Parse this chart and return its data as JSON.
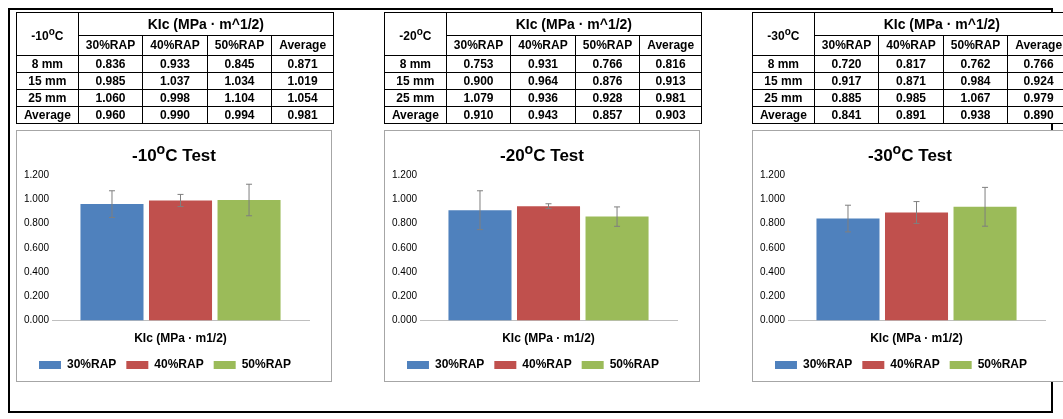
{
  "chart_data": [
    {
      "type": "heatmap",
      "data_labels": true,
      "title": "KIc (MPa · m^1/2)",
      "ylabel": "-10$^{o}$C",
      "categories": [
        "30%RAP",
        "40%RAP",
        "50%RAP",
        "Average"
      ],
      "y_categories": [
        "8 mm",
        "15 mm",
        "25 mm",
        "Average"
      ],
      "cells": [
        [
          0.836,
          0.933,
          0.845,
          0.871
        ],
        [
          0.985,
          1.037,
          1.034,
          1.019
        ],
        [
          1.06,
          0.998,
          1.104,
          1.054
        ],
        [
          0.96,
          0.99,
          0.994,
          0.981
        ]
      ],
      "cell_labels": [
        [
          "0.836",
          "0.933",
          "0.845",
          "0.871"
        ],
        [
          "0.985",
          "1.037",
          "1.034",
          "1.019"
        ],
        [
          "1.060",
          "0.998",
          "1.104",
          "1.054"
        ],
        [
          "0.960",
          "0.990",
          "0.994",
          "0.981"
        ]
      ]
    },
    {
      "type": "heatmap",
      "data_labels": true,
      "title": "KIc (MPa · m^1/2)",
      "ylabel": "-20$^{o}$C",
      "categories": [
        "30%RAP",
        "40%RAP",
        "50%RAP",
        "Average"
      ],
      "y_categories": [
        "8 mm",
        "15 mm",
        "25 mm",
        "Average"
      ],
      "cells": [
        [
          0.753,
          0.931,
          0.766,
          0.816
        ],
        [
          0.9,
          0.964,
          0.876,
          0.913
        ],
        [
          1.079,
          0.936,
          0.928,
          0.981
        ],
        [
          0.91,
          0.943,
          0.857,
          0.903
        ]
      ],
      "cell_labels": [
        [
          "0.753",
          "0.931",
          "0.766",
          "0.816"
        ],
        [
          "0.900",
          "0.964",
          "0.876",
          "0.913"
        ],
        [
          "1.079",
          "0.936",
          "0.928",
          "0.981"
        ],
        [
          "0.910",
          "0.943",
          "0.857",
          "0.903"
        ]
      ]
    },
    {
      "type": "heatmap",
      "data_labels": true,
      "title": "KIc (MPa · m^1/2)",
      "ylabel": "-30$^{o}$C",
      "categories": [
        "30%RAP",
        "40%RAP",
        "50%RAP",
        "Average"
      ],
      "y_categories": [
        "8 mm",
        "15 mm",
        "25 mm",
        "Average"
      ],
      "cells": [
        [
          0.72,
          0.817,
          0.762,
          0.766
        ],
        [
          0.917,
          0.871,
          0.984,
          0.924
        ],
        [
          0.885,
          0.985,
          1.067,
          0.979
        ],
        [
          0.841,
          0.891,
          0.938,
          0.89
        ]
      ],
      "cell_labels": [
        [
          "0.720",
          "0.817",
          "0.762",
          "0.766"
        ],
        [
          "0.917",
          "0.871",
          "0.984",
          "0.924"
        ],
        [
          "0.885",
          "0.985",
          "1.067",
          "0.979"
        ],
        [
          "0.841",
          "0.891",
          "0.938",
          "0.890"
        ]
      ]
    },
    {
      "type": "bar",
      "title": "-10$^{o}$C Test",
      "categories": [
        "KIc (MPa · m1/2)"
      ],
      "ylim": [
        0,
        1.2
      ],
      "legend": "bottom",
      "yticks": [
        {
          "value": 0,
          "label": "0.000"
        },
        {
          "value": 0.2,
          "label": "0.200"
        },
        {
          "value": 0.4,
          "label": "0.400"
        },
        {
          "value": 0.6,
          "label": "0.600"
        },
        {
          "value": 0.8,
          "label": "0.800"
        },
        {
          "value": 1,
          "label": "1.000"
        },
        {
          "value": 1.2,
          "label": "1.200"
        }
      ],
      "series": [
        {
          "name": "30%RAP",
          "color": "#4f81bd",
          "values": [
            0.96
          ],
          "errors": [
            0.11
          ]
        },
        {
          "name": "40%RAP",
          "color": "#c0504d",
          "values": [
            0.99
          ],
          "errors": [
            0.05
          ]
        },
        {
          "name": "50%RAP",
          "color": "#9bbb59",
          "values": [
            0.994
          ],
          "errors": [
            0.13
          ]
        }
      ]
    },
    {
      "type": "bar",
      "title": "-20$^{o}$C Test",
      "categories": [
        "KIc (MPa · m1/2)"
      ],
      "ylim": [
        0,
        1.2
      ],
      "legend": "bottom",
      "yticks": [
        {
          "value": 0,
          "label": "0.000"
        },
        {
          "value": 0.2,
          "label": "0.200"
        },
        {
          "value": 0.4,
          "label": "0.400"
        },
        {
          "value": 0.6,
          "label": "0.600"
        },
        {
          "value": 0.8,
          "label": "0.800"
        },
        {
          "value": 1,
          "label": "1.000"
        },
        {
          "value": 1.2,
          "label": "1.200"
        }
      ],
      "series": [
        {
          "name": "30%RAP",
          "color": "#4f81bd",
          "values": [
            0.91
          ],
          "errors": [
            0.16
          ]
        },
        {
          "name": "40%RAP",
          "color": "#c0504d",
          "values": [
            0.943
          ],
          "errors": [
            0.02
          ]
        },
        {
          "name": "50%RAP",
          "color": "#9bbb59",
          "values": [
            0.857
          ],
          "errors": [
            0.08
          ]
        }
      ]
    },
    {
      "type": "bar",
      "title": "-30$^{o}$C Test",
      "categories": [
        "KIc (MPa · m1/2)"
      ],
      "ylim": [
        0,
        1.2
      ],
      "legend": "bottom",
      "yticks": [
        {
          "value": 0,
          "label": "0.000"
        },
        {
          "value": 0.2,
          "label": "0.200"
        },
        {
          "value": 0.4,
          "label": "0.400"
        },
        {
          "value": 0.6,
          "label": "0.600"
        },
        {
          "value": 0.8,
          "label": "0.800"
        },
        {
          "value": 1,
          "label": "1.000"
        },
        {
          "value": 1.2,
          "label": "1.200"
        }
      ],
      "series": [
        {
          "name": "30%RAP",
          "color": "#4f81bd",
          "values": [
            0.841
          ],
          "errors": [
            0.11
          ]
        },
        {
          "name": "40%RAP",
          "color": "#c0504d",
          "values": [
            0.891
          ],
          "errors": [
            0.09
          ]
        },
        {
          "name": "50%RAP",
          "color": "#9bbb59",
          "values": [
            0.938
          ],
          "errors": [
            0.16
          ]
        }
      ]
    }
  ]
}
